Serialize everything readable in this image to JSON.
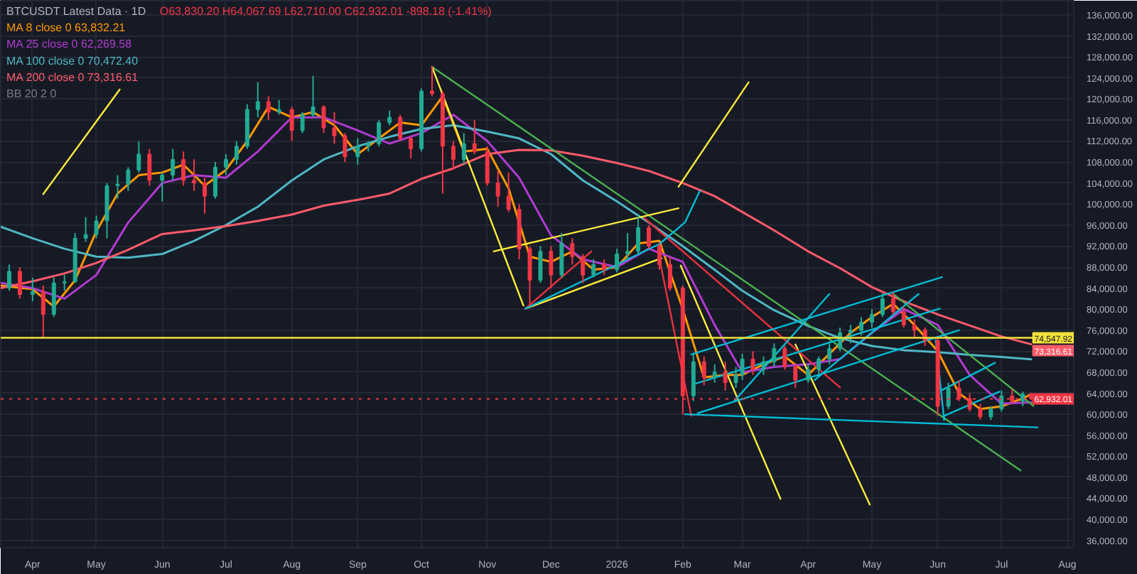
{
  "chart_data": {
    "type": "candlestick",
    "title": "BTCUSDT Latest Data · 1D",
    "subtitle": "O63,830.20 H64,067.69 L62,710.00 C62,932.01 -898.18 (-1.41%)",
    "x": [
      "2025-03-21",
      "2025-03-26",
      "2025-04-01",
      "2025-04-06",
      "2025-04-11",
      "2025-04-16",
      "2025-04-21",
      "2025-04-26",
      "2025-05-01",
      "2025-05-06",
      "2025-05-11",
      "2025-05-16",
      "2025-05-21",
      "2025-05-26",
      "2025-06-01",
      "2025-06-06",
      "2025-06-11",
      "2025-06-16",
      "2025-06-21",
      "2025-06-26",
      "2025-07-01",
      "2025-07-06",
      "2025-07-11",
      "2025-07-16",
      "2025-07-21",
      "2025-07-26",
      "2025-08-01",
      "2025-08-06",
      "2025-08-11",
      "2025-08-16",
      "2025-08-21",
      "2025-08-26",
      "2025-09-01",
      "2025-09-06",
      "2025-09-11",
      "2025-09-16",
      "2025-09-21",
      "2025-09-26",
      "2025-10-01",
      "2025-10-06",
      "2025-10-11",
      "2025-10-16",
      "2025-10-21",
      "2025-10-26",
      "2025-11-01",
      "2025-11-06",
      "2025-11-11",
      "2025-11-16",
      "2025-11-21",
      "2025-11-26",
      "2025-12-01",
      "2025-12-06",
      "2025-12-11",
      "2025-12-16",
      "2025-12-21",
      "2025-12-26",
      "2026-01-01",
      "2026-01-06",
      "2026-01-11",
      "2026-01-16",
      "2026-01-21",
      "2026-01-26",
      "2026-02-01",
      "2026-02-06",
      "2026-02-11",
      "2026-02-16",
      "2026-02-21",
      "2026-02-26",
      "2026-03-01",
      "2026-03-06",
      "2026-03-11",
      "2026-03-16",
      "2026-03-21",
      "2026-03-26",
      "2026-04-01",
      "2026-04-06",
      "2026-04-11",
      "2026-04-16",
      "2026-04-21",
      "2026-04-26",
      "2026-05-01",
      "2026-05-06",
      "2026-05-11",
      "2026-05-16",
      "2026-05-21",
      "2026-05-26",
      "2026-06-01",
      "2026-06-06",
      "2026-06-11",
      "2026-06-16",
      "2026-06-21",
      "2026-06-26",
      "2026-07-01",
      "2026-07-06",
      "2026-07-11",
      "2026-07-15"
    ],
    "ohlc": [
      [
        84000,
        88500,
        83500,
        87200
      ],
      [
        87200,
        88000,
        82000,
        82800
      ],
      [
        82800,
        86000,
        81500,
        83300
      ],
      [
        83300,
        84500,
        74500,
        79000
      ],
      [
        79000,
        86000,
        78500,
        85000
      ],
      [
        85000,
        86500,
        83500,
        85200
      ],
      [
        85200,
        94500,
        85000,
        93500
      ],
      [
        93500,
        97500,
        92800,
        94200
      ],
      [
        94200,
        97800,
        93500,
        96800
      ],
      [
        96800,
        104000,
        93500,
        103500
      ],
      [
        103500,
        105500,
        101000,
        103800
      ],
      [
        103800,
        107000,
        102500,
        106500
      ],
      [
        106500,
        111900,
        106000,
        109500
      ],
      [
        109500,
        110500,
        103500,
        104500
      ],
      [
        104500,
        106000,
        100500,
        105500
      ],
      [
        105500,
        110500,
        104500,
        108500
      ],
      [
        108500,
        110000,
        103500,
        104500
      ],
      [
        104500,
        108500,
        102500,
        104000
      ],
      [
        104000,
        105000,
        98200,
        101500
      ],
      [
        101500,
        108000,
        101000,
        107000
      ],
      [
        107000,
        109500,
        105500,
        108500
      ],
      [
        108500,
        112000,
        107500,
        111000
      ],
      [
        111000,
        119000,
        110500,
        118000
      ],
      [
        118000,
        123200,
        116500,
        119500
      ],
      [
        119500,
        120500,
        116000,
        117500
      ],
      [
        117500,
        119800,
        117000,
        118000
      ],
      [
        118000,
        118500,
        112000,
        114000
      ],
      [
        114000,
        117500,
        113500,
        117000
      ],
      [
        117000,
        124400,
        116500,
        118500
      ],
      [
        118500,
        118800,
        113500,
        114500
      ],
      [
        114500,
        117500,
        111500,
        113000
      ],
      [
        113000,
        113500,
        108000,
        109000
      ],
      [
        109000,
        112500,
        107500,
        111000
      ],
      [
        111000,
        112000,
        110000,
        111500
      ],
      [
        111500,
        116000,
        111000,
        115500
      ],
      [
        115500,
        117800,
        115000,
        116500
      ],
      [
        116500,
        117000,
        112000,
        112500
      ],
      [
        112500,
        112800,
        108700,
        110500
      ],
      [
        110500,
        122000,
        110000,
        121500
      ],
      [
        121500,
        126200,
        120500,
        121000
      ],
      [
        121000,
        121500,
        102000,
        111000
      ],
      [
        111000,
        112000,
        106500,
        108500
      ],
      [
        108500,
        113500,
        107500,
        111500
      ],
      [
        111500,
        116000,
        109500,
        110000
      ],
      [
        110000,
        111000,
        103500,
        104000
      ],
      [
        104000,
        106500,
        99500,
        101500
      ],
      [
        101500,
        106000,
        98500,
        99000
      ],
      [
        99000,
        100000,
        89500,
        91500
      ],
      [
        91500,
        92000,
        80600,
        85500
      ],
      [
        85500,
        92000,
        85000,
        91000
      ],
      [
        91000,
        92000,
        84000,
        86500
      ],
      [
        86500,
        94500,
        86000,
        92500
      ],
      [
        92500,
        93500,
        88500,
        90000
      ],
      [
        90000,
        90500,
        85000,
        86500
      ],
      [
        86500,
        89500,
        86000,
        88500
      ],
      [
        88500,
        89500,
        86500,
        87500
      ],
      [
        87500,
        91500,
        87000,
        90500
      ],
      [
        90500,
        94500,
        89500,
        91000
      ],
      [
        91000,
        97900,
        90500,
        95500
      ],
      [
        95500,
        96000,
        91500,
        92000
      ],
      [
        92000,
        92500,
        87500,
        88500
      ],
      [
        88500,
        90000,
        83500,
        84000
      ],
      [
        84000,
        84500,
        60000,
        63500
      ],
      [
        63500,
        71500,
        62500,
        70000
      ],
      [
        70000,
        71000,
        65500,
        67000
      ],
      [
        67000,
        69500,
        66000,
        68000
      ],
      [
        68000,
        70000,
        64500,
        66000
      ],
      [
        66000,
        69000,
        65000,
        67500
      ],
      [
        67500,
        71500,
        66500,
        70500
      ],
      [
        70500,
        72000,
        67500,
        68500
      ],
      [
        68500,
        71000,
        67500,
        70000
      ],
      [
        70000,
        73500,
        69000,
        72500
      ],
      [
        72500,
        73000,
        68500,
        69000
      ],
      [
        69000,
        69500,
        65000,
        66500
      ],
      [
        66500,
        69500,
        66000,
        68500
      ],
      [
        68500,
        71000,
        67500,
        70500
      ],
      [
        70500,
        73500,
        69500,
        72500
      ],
      [
        72500,
        76500,
        72000,
        75500
      ],
      [
        75500,
        77000,
        73500,
        76000
      ],
      [
        76000,
        78500,
        75000,
        77500
      ],
      [
        77500,
        80000,
        76500,
        79000
      ],
      [
        79000,
        83000,
        78500,
        82000
      ],
      [
        82000,
        83200,
        79000,
        79500
      ],
      [
        79500,
        80500,
        76500,
        77000
      ],
      [
        77000,
        78000,
        74500,
        76000
      ],
      [
        76000,
        76500,
        73000,
        74000
      ],
      [
        74000,
        74500,
        59700,
        61500
      ],
      [
        61500,
        66000,
        61000,
        65000
      ],
      [
        65000,
        66500,
        62500,
        63000
      ],
      [
        63000,
        64000,
        60500,
        61000
      ],
      [
        61000,
        62000,
        59000,
        59500
      ],
      [
        59500,
        61500,
        58900,
        61000
      ],
      [
        61000,
        64500,
        60500,
        63500
      ],
      [
        63500,
        64800,
        62000,
        62500
      ],
      [
        62500,
        64300,
        61500,
        63830.2
      ],
      [
        63830.2,
        64067.69,
        62710.0,
        62932.01
      ]
    ],
    "colors": [
      "#22ab94",
      "#f23645",
      "#22ab94",
      "#f23645",
      "#22ab94",
      "#22ab94",
      "#22ab94",
      "#22ab94",
      "#22ab94",
      "#22ab94",
      "#22ab94",
      "#22ab94",
      "#22ab94",
      "#f23645",
      "#22ab94",
      "#22ab94",
      "#f23645",
      "#f23645",
      "#f23645",
      "#22ab94",
      "#22ab94",
      "#22ab94",
      "#22ab94",
      "#22ab94",
      "#f23645",
      "#22ab94",
      "#f23645",
      "#22ab94",
      "#22ab94",
      "#f23645",
      "#f23645",
      "#f23645",
      "#22ab94",
      "#22ab94",
      "#22ab94",
      "#22ab94",
      "#f23645",
      "#f23645",
      "#22ab94",
      "#f23645",
      "#f23645",
      "#f23645",
      "#22ab94",
      "#f23645",
      "#f23645",
      "#f23645",
      "#f23645",
      "#f23645",
      "#f23645",
      "#22ab94",
      "#f23645",
      "#22ab94",
      "#f23645",
      "#f23645",
      "#22ab94",
      "#f23645",
      "#22ab94",
      "#22ab94",
      "#22ab94",
      "#f23645",
      "#f23645",
      "#f23645",
      "#f23645",
      "#22ab94",
      "#f23645",
      "#22ab94",
      "#f23645",
      "#22ab94",
      "#22ab94",
      "#f23645",
      "#22ab94",
      "#22ab94",
      "#f23645",
      "#f23645",
      "#22ab94",
      "#22ab94",
      "#22ab94",
      "#22ab94",
      "#22ab94",
      "#22ab94",
      "#22ab94",
      "#22ab94",
      "#f23645",
      "#f23645",
      "#f23645",
      "#f23645",
      "#f23645",
      "#22ab94",
      "#f23645",
      "#f23645",
      "#f23645",
      "#22ab94",
      "#22ab94",
      "#f23645",
      "#22ab94",
      "#f23645"
    ],
    "series": [
      {
        "name": "MA 8 close 0 63,832.21",
        "type": "line",
        "color": "#ff9800",
        "x": [
          "2025-03-17",
          "2025-04-01",
          "2025-04-11",
          "2025-04-21",
          "2025-05-01",
          "2025-05-11",
          "2025-05-21",
          "2025-06-01",
          "2025-06-11",
          "2025-06-21",
          "2025-07-01",
          "2025-07-11",
          "2025-07-21",
          "2025-08-01",
          "2025-08-11",
          "2025-08-21",
          "2025-09-01",
          "2025-09-11",
          "2025-09-21",
          "2025-10-01",
          "2025-10-11",
          "2025-10-21",
          "2025-11-01",
          "2025-11-11",
          "2025-11-21",
          "2025-12-01",
          "2025-12-11",
          "2025-12-21",
          "2026-01-01",
          "2026-01-11",
          "2026-01-21",
          "2026-02-01",
          "2026-02-11",
          "2026-02-21",
          "2026-03-01",
          "2026-03-11",
          "2026-03-21",
          "2026-04-01",
          "2026-04-11",
          "2026-04-21",
          "2026-05-01",
          "2026-05-11",
          "2026-05-21",
          "2026-06-01",
          "2026-06-11",
          "2026-06-21",
          "2026-07-01",
          "2026-07-11",
          "2026-07-15"
        ],
        "values": [
          84500,
          83800,
          80500,
          85500,
          94800,
          102000,
          105500,
          106000,
          107500,
          103500,
          106500,
          112000,
          118500,
          116500,
          117500,
          115000,
          109500,
          112500,
          115500,
          115000,
          120500,
          110000,
          110500,
          103000,
          90000,
          89000,
          91000,
          87500,
          88000,
          92500,
          93000,
          80000,
          67000,
          67500,
          67500,
          69500,
          71000,
          67500,
          71500,
          75500,
          78500,
          81000,
          77000,
          72000,
          64000,
          61000,
          61500,
          63000,
          63832.21
        ]
      },
      {
        "name": "MA 25 close 0 62,269.58",
        "type": "line",
        "color": "#b03bd0",
        "x": [
          "2025-03-17",
          "2025-04-01",
          "2025-04-16",
          "2025-05-01",
          "2025-05-16",
          "2025-06-01",
          "2025-06-16",
          "2025-07-01",
          "2025-07-16",
          "2025-08-01",
          "2025-08-16",
          "2025-09-01",
          "2025-09-16",
          "2025-10-01",
          "2025-10-16",
          "2025-11-01",
          "2025-11-16",
          "2025-12-01",
          "2025-12-16",
          "2026-01-01",
          "2026-01-16",
          "2026-02-01",
          "2026-02-16",
          "2026-03-01",
          "2026-03-16",
          "2026-04-01",
          "2026-04-16",
          "2026-05-01",
          "2026-05-16",
          "2026-06-01",
          "2026-06-16",
          "2026-07-01",
          "2026-07-15"
        ],
        "values": [
          85000,
          84000,
          82000,
          86500,
          96500,
          104000,
          105500,
          105000,
          110000,
          116500,
          116500,
          114000,
          111500,
          113500,
          117000,
          112000,
          105000,
          94000,
          89500,
          88000,
          91500,
          89000,
          77000,
          68000,
          69000,
          69500,
          70500,
          75500,
          80000,
          77000,
          67500,
          62000,
          62269.58
        ]
      },
      {
        "name": "MA 100 close 0 70,472.40",
        "type": "line",
        "color": "#4fb7c5",
        "x": [
          "2025-03-17",
          "2025-04-01",
          "2025-04-16",
          "2025-05-01",
          "2025-05-16",
          "2025-06-01",
          "2025-06-16",
          "2025-07-01",
          "2025-07-16",
          "2025-08-01",
          "2025-08-16",
          "2025-09-01",
          "2025-09-16",
          "2025-10-01",
          "2025-10-16",
          "2025-11-01",
          "2025-11-16",
          "2025-12-01",
          "2025-12-16",
          "2026-01-01",
          "2026-01-16",
          "2026-02-01",
          "2026-02-16",
          "2026-03-01",
          "2026-03-16",
          "2026-04-01",
          "2026-04-16",
          "2026-05-01",
          "2026-05-16",
          "2026-06-01",
          "2026-06-16",
          "2026-07-01",
          "2026-07-15"
        ],
        "values": [
          95700,
          93500,
          91500,
          90000,
          89800,
          90500,
          93000,
          96000,
          99500,
          104500,
          108500,
          111000,
          112800,
          114300,
          115000,
          113800,
          112500,
          109500,
          104500,
          100500,
          96500,
          92000,
          87500,
          83500,
          79800,
          76800,
          74500,
          73000,
          72200,
          71800,
          71300,
          70900,
          70472.4
        ]
      },
      {
        "name": "MA 200 close 0 73,316.61",
        "type": "line",
        "color": "#ff5a6a",
        "x": [
          "2025-03-17",
          "2025-04-01",
          "2025-04-16",
          "2025-05-01",
          "2025-05-16",
          "2025-06-01",
          "2025-06-16",
          "2025-07-01",
          "2025-07-16",
          "2025-08-01",
          "2025-08-16",
          "2025-09-01",
          "2025-09-16",
          "2025-10-01",
          "2025-10-16",
          "2025-11-01",
          "2025-11-16",
          "2025-12-01",
          "2025-12-16",
          "2026-01-01",
          "2026-01-16",
          "2026-02-01",
          "2026-02-16",
          "2026-03-01",
          "2026-03-16",
          "2026-04-01",
          "2026-04-16",
          "2026-05-01",
          "2026-05-16",
          "2026-06-01",
          "2026-06-16",
          "2026-07-01",
          "2026-07-15"
        ],
        "values": [
          84000,
          85300,
          86800,
          88800,
          91300,
          94300,
          95000,
          95800,
          96800,
          98000,
          99700,
          100800,
          102000,
          104800,
          106800,
          109500,
          110300,
          110200,
          109200,
          107800,
          106300,
          104000,
          101500,
          98500,
          95000,
          91000,
          87800,
          84200,
          81500,
          79000,
          76900,
          74800,
          73316.61
        ],
        "value_labels": [
          null,
          null,
          null,
          null,
          null,
          null,
          null,
          null,
          null,
          null,
          null,
          null,
          null,
          null,
          null,
          null,
          null,
          null,
          null,
          null,
          null,
          null,
          null,
          null,
          null,
          null,
          null,
          null,
          null,
          null,
          null,
          null,
          "73,316.61"
        ]
      },
      {
        "type": "line",
        "color": "#4caf50",
        "x": [
          "2025-10-06",
          "2026-07-10"
        ],
        "values": [
          126100,
          49300
        ]
      },
      {
        "type": "line",
        "color": "#4caf50",
        "x": [
          "2026-05-11",
          "2026-07-16"
        ],
        "values": [
          82900,
          61600
        ]
      },
      {
        "type": "line",
        "color": "#ffeb3b",
        "x": [
          "2025-10-06",
          "2025-11-18"
        ],
        "values": [
          126100,
          80700
        ]
      },
      {
        "type": "line",
        "color": "#ffeb3b",
        "x": [
          "2025-11-04",
          "2026-01-30"
        ],
        "values": [
          91000,
          99200
        ]
      },
      {
        "type": "line",
        "color": "#ffeb3b",
        "x": [
          "2025-11-19",
          "2026-01-22"
        ],
        "values": [
          80100,
          89700
        ]
      },
      {
        "type": "line",
        "color": "#ffeb3b",
        "x": [
          "2025-04-06",
          "2025-05-12"
        ],
        "values": [
          101900,
          121800
        ]
      },
      {
        "type": "line",
        "color": "#ffeb3b",
        "x": [
          "2026-01-30",
          "2026-03-04"
        ],
        "values": [
          103300,
          123200
        ]
      },
      {
        "type": "line",
        "color": "#ffeb3b",
        "x": [
          "2026-01-31",
          "2026-03-19"
        ],
        "values": [
          88300,
          43900
        ]
      },
      {
        "type": "line",
        "color": "#ffeb3b",
        "x": [
          "2026-03-26",
          "2026-04-30"
        ],
        "values": [
          73300,
          42800
        ]
      },
      {
        "type": "line",
        "color": "#e8323f",
        "x": [
          "2025-11-19",
          "2025-12-20"
        ],
        "values": [
          80100,
          91000
        ]
      },
      {
        "type": "line",
        "color": "#e8323f",
        "x": [
          "2026-01-14",
          "2026-04-16"
        ],
        "values": [
          97300,
          65100
        ]
      },
      {
        "type": "line",
        "color": "#e8323f",
        "x": [
          "2026-01-21",
          "2026-02-05"
        ],
        "values": [
          89700,
          59700
        ]
      },
      {
        "type": "line",
        "color": "#00bcd4",
        "x": [
          "2025-11-19",
          "2026-01-21"
        ],
        "values": [
          80100,
          92400
        ]
      },
      {
        "type": "line",
        "color": "#00bcd4",
        "x": [
          "2026-01-21",
          "2026-02-02",
          "2026-02-09"
        ],
        "values": [
          92400,
          96500,
          102500
        ]
      },
      {
        "type": "line",
        "color": "#00bcd4",
        "x": [
          "2026-02-02",
          "2026-07-18"
        ],
        "values": [
          60000,
          57500
        ]
      },
      {
        "type": "line",
        "color": "#00bcd4",
        "x": [
          "2026-02-05",
          "2026-06-03"
        ],
        "values": [
          71400,
          86100
        ]
      },
      {
        "type": "line",
        "color": "#00bcd4",
        "x": [
          "2026-02-06",
          "2026-06-02"
        ],
        "values": [
          65700,
          80100
        ]
      },
      {
        "type": "line",
        "color": "#00bcd4",
        "x": [
          "2026-02-08",
          "2026-06-11"
        ],
        "values": [
          60200,
          76000
        ]
      },
      {
        "type": "line",
        "color": "#00bcd4",
        "x": [
          "2026-02-25",
          "2026-04-11"
        ],
        "values": [
          62400,
          82900
        ]
      },
      {
        "type": "line",
        "color": "#00bcd4",
        "x": [
          "2026-04-04",
          "2026-05-23"
        ],
        "values": [
          66500,
          82900
        ]
      },
      {
        "type": "line",
        "color": "#00bcd4",
        "x": [
          "2026-05-31",
          "2026-06-04"
        ],
        "values": [
          74100,
          58900
        ]
      },
      {
        "type": "line",
        "color": "#00bcd4",
        "x": [
          "2026-06-03",
          "2026-06-28"
        ],
        "values": [
          64600,
          69800
        ]
      },
      {
        "type": "line",
        "color": "#00bcd4",
        "x": [
          "2026-06-04",
          "2026-06-30"
        ],
        "values": [
          59700,
          64300
        ]
      }
    ],
    "ref_lines": [
      {
        "axis": "y",
        "value": 74547.92,
        "label": "74,547.92",
        "color": "#f2e13a"
      },
      {
        "axis": "y",
        "value": 62932.01,
        "label": "62,932.01",
        "color": "#f23645",
        "line_style": "dotted"
      }
    ],
    "annotations": [
      "BB 20 2 0"
    ],
    "xlim": [
      "2025-03-17",
      "2026-08-04"
    ],
    "xticks": [
      {
        "value": "2025-04-01",
        "label": "Apr"
      },
      {
        "value": "2025-05-01",
        "label": "May"
      },
      {
        "value": "2025-06-01",
        "label": "Jun"
      },
      {
        "value": "2025-07-01",
        "label": "Jul"
      },
      {
        "value": "2025-08-01",
        "label": "Aug"
      },
      {
        "value": "2025-09-01",
        "label": "Sep"
      },
      {
        "value": "2025-10-01",
        "label": "Oct"
      },
      {
        "value": "2025-11-01",
        "label": "Nov"
      },
      {
        "value": "2025-12-01",
        "label": "Dec"
      },
      {
        "value": "2026-01-01",
        "label": "2026"
      },
      {
        "value": "2026-02-01",
        "label": "Feb"
      },
      {
        "value": "2026-03-01",
        "label": "Mar"
      },
      {
        "value": "2026-04-01",
        "label": "Apr"
      },
      {
        "value": "2026-05-01",
        "label": "May"
      },
      {
        "value": "2026-06-01",
        "label": "Jun"
      },
      {
        "value": "2026-07-01",
        "label": "Jul"
      },
      {
        "value": "2026-08-01",
        "label": "Aug"
      }
    ],
    "ylim": [
      34600,
      138700
    ],
    "yticks": [
      {
        "value": 36000,
        "label": "36,000.00"
      },
      {
        "value": 40000,
        "label": "40,000.00"
      },
      {
        "value": 44000,
        "label": "44,000.00"
      },
      {
        "value": 48000,
        "label": "48,000.00"
      },
      {
        "value": 52000,
        "label": "52,000.00"
      },
      {
        "value": 56000,
        "label": "56,000.00"
      },
      {
        "value": 60000,
        "label": "60,000.00"
      },
      {
        "value": 64000,
        "label": "64,000.00"
      },
      {
        "value": 68000,
        "label": "68,000.00"
      },
      {
        "value": 72000,
        "label": "72,000.00"
      },
      {
        "value": 76000,
        "label": "76,000.00"
      },
      {
        "value": 80000,
        "label": "80,000.00"
      },
      {
        "value": 84000,
        "label": "84,000.00"
      },
      {
        "value": 88000,
        "label": "88,000.00"
      },
      {
        "value": 92000,
        "label": "92,000.00"
      },
      {
        "value": 96000,
        "label": "96,000.00"
      },
      {
        "value": 100000,
        "label": "100,000.00"
      },
      {
        "value": 104000,
        "label": "104,000.00"
      },
      {
        "value": 108000,
        "label": "108,000.00"
      },
      {
        "value": 112000,
        "label": "112,000.00"
      },
      {
        "value": 116000,
        "label": "116,000.00"
      },
      {
        "value": 120000,
        "label": "120,000.00"
      },
      {
        "value": 124000,
        "label": "124,000.00"
      },
      {
        "value": 128000,
        "label": "128,000.00"
      },
      {
        "value": 132000,
        "label": "132,000.00"
      },
      {
        "value": 136000,
        "label": "136,000.00"
      }
    ],
    "grid": true,
    "legend": "top left"
  }
}
